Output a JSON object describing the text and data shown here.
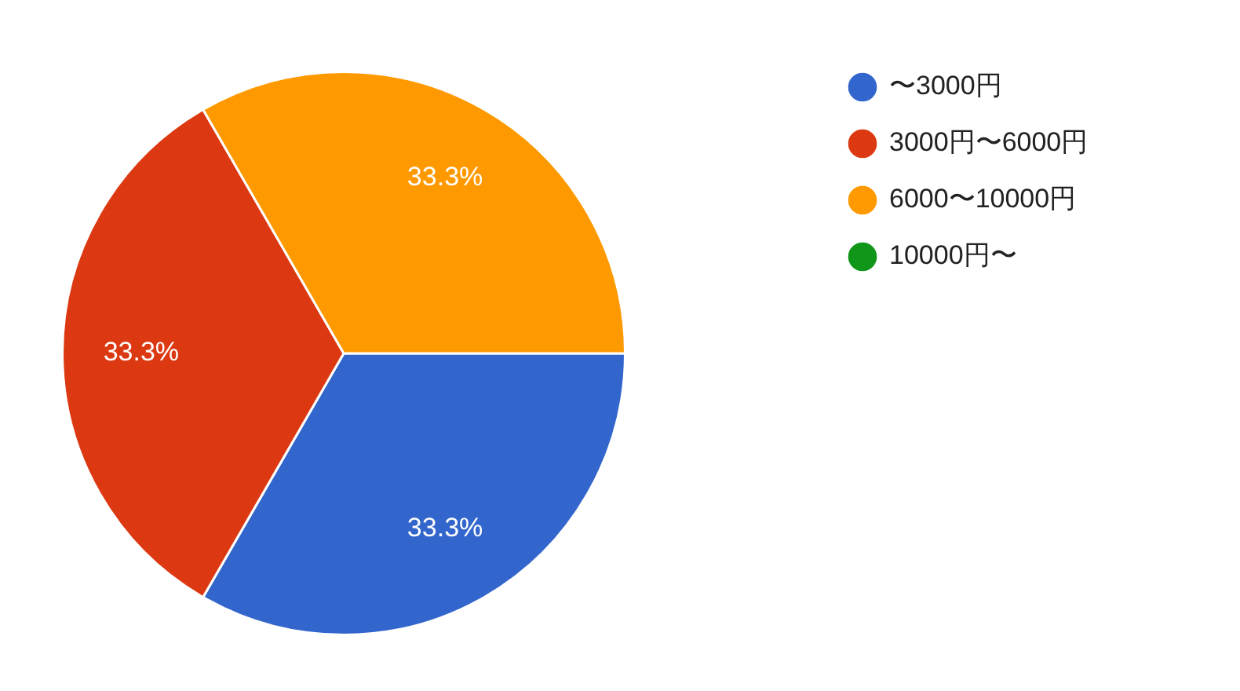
{
  "chart_data": {
    "type": "pie",
    "categories": [
      "〜3000円",
      "3000円〜6000円",
      "6000〜10000円",
      "10000円〜"
    ],
    "values": [
      33.3,
      33.3,
      33.3,
      0
    ],
    "colors": [
      "#3366cc",
      "#dc3912",
      "#ff9900",
      "#109618"
    ],
    "value_labels": [
      "33.3%",
      "33.3%",
      "33.3%",
      null
    ],
    "legend": "top right"
  }
}
